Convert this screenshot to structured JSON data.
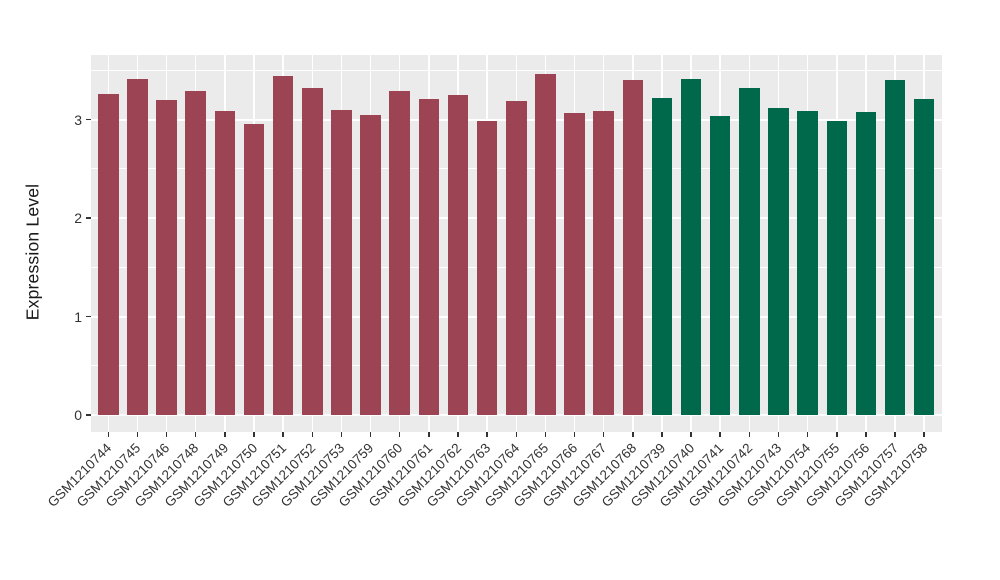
{
  "chart_data": {
    "type": "bar",
    "title": "",
    "xlabel": "",
    "ylabel": "Expression Level",
    "y_ticks": [
      0,
      1,
      2,
      3
    ],
    "ylim": [
      0,
      3.65
    ],
    "grid": "white major and minor gridlines on grey panel",
    "legend": "none",
    "categories": [
      "GSM1210744",
      "GSM1210745",
      "GSM1210746",
      "GSM1210748",
      "GSM1210749",
      "GSM1210750",
      "GSM1210751",
      "GSM1210752",
      "GSM1210753",
      "GSM1210759",
      "GSM1210760",
      "GSM1210761",
      "GSM1210762",
      "GSM1210763",
      "GSM1210764",
      "GSM1210765",
      "GSM1210766",
      "GSM1210767",
      "GSM1210768",
      "GSM1210739",
      "GSM1210740",
      "GSM1210741",
      "GSM1210742",
      "GSM1210743",
      "GSM1210754",
      "GSM1210755",
      "GSM1210756",
      "GSM1210757",
      "GSM1210758"
    ],
    "values": [
      3.26,
      3.41,
      3.2,
      3.29,
      3.09,
      2.95,
      3.44,
      3.32,
      3.1,
      3.05,
      3.29,
      3.21,
      3.25,
      2.99,
      3.19,
      3.46,
      3.07,
      3.09,
      3.4,
      3.22,
      3.41,
      3.04,
      3.32,
      3.12,
      3.09,
      2.98,
      3.08,
      3.4,
      3.21
    ],
    "bar_groups": [
      "group_a",
      "group_a",
      "group_a",
      "group_a",
      "group_a",
      "group_a",
      "group_a",
      "group_a",
      "group_a",
      "group_a",
      "group_a",
      "group_a",
      "group_a",
      "group_a",
      "group_a",
      "group_a",
      "group_a",
      "group_a",
      "group_a",
      "group_b",
      "group_b",
      "group_b",
      "group_b",
      "group_b",
      "group_b",
      "group_b",
      "group_b",
      "group_b",
      "group_b"
    ],
    "group_colors": {
      "group_a": "#9C4453",
      "group_b": "#01694B"
    },
    "style": {
      "panel_bg": "#EBEBEB",
      "grid_color": "#FFFFFF",
      "tick_mark_color": "#333333",
      "axis_text_color": "#333333",
      "axis_title_color": "#1A1A1A",
      "figure_bg": "#FFFFFF"
    }
  }
}
